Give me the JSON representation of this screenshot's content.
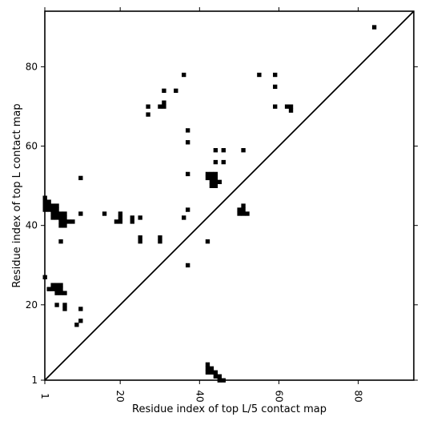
{
  "chart_data": {
    "type": "heatmap",
    "xlabel": "Residue index of top L/5 contact map",
    "ylabel": "Residue index of top L contact map",
    "xlim": [
      1,
      94
    ],
    "ylim": [
      1,
      94
    ],
    "x_ticks": [
      1,
      20,
      40,
      60,
      80
    ],
    "y_ticks": [
      1,
      20,
      40,
      60,
      80
    ],
    "x_tick_labels": [
      "1",
      "20",
      "40",
      "60",
      "80"
    ],
    "y_tick_labels": [
      "1",
      "20",
      "40",
      "60",
      "80"
    ],
    "grid": false,
    "cell_color": "#000000",
    "line_color": "#000000",
    "diagonal": [
      [
        1,
        1
      ],
      [
        94,
        94
      ]
    ],
    "cells": [
      [
        84,
        90
      ],
      [
        36,
        78
      ],
      [
        55,
        78
      ],
      [
        59,
        78
      ],
      [
        59,
        75
      ],
      [
        31,
        74
      ],
      [
        34,
        74
      ],
      [
        31,
        71
      ],
      [
        27,
        70
      ],
      [
        30,
        70
      ],
      [
        31,
        70
      ],
      [
        59,
        70
      ],
      [
        62,
        70
      ],
      [
        63,
        70
      ],
      [
        63,
        69
      ],
      [
        27,
        68
      ],
      [
        37,
        64
      ],
      [
        37,
        61
      ],
      [
        44,
        59
      ],
      [
        46,
        59
      ],
      [
        51,
        59
      ],
      [
        44,
        56
      ],
      [
        46,
        56
      ],
      [
        37,
        53
      ],
      [
        42,
        53
      ],
      [
        43,
        53
      ],
      [
        44,
        53
      ],
      [
        10,
        52
      ],
      [
        42,
        52
      ],
      [
        43,
        52
      ],
      [
        44,
        52
      ],
      [
        43,
        51
      ],
      [
        44,
        51
      ],
      [
        45,
        51
      ],
      [
        43,
        50
      ],
      [
        44,
        50
      ],
      [
        1,
        47
      ],
      [
        1,
        46
      ],
      [
        2,
        46
      ],
      [
        1,
        45
      ],
      [
        2,
        45
      ],
      [
        3,
        45
      ],
      [
        4,
        45
      ],
      [
        51,
        45
      ],
      [
        1,
        44
      ],
      [
        2,
        44
      ],
      [
        3,
        44
      ],
      [
        4,
        44
      ],
      [
        37,
        44
      ],
      [
        50,
        44
      ],
      [
        51,
        44
      ],
      [
        3,
        43
      ],
      [
        4,
        43
      ],
      [
        5,
        43
      ],
      [
        6,
        43
      ],
      [
        10,
        43
      ],
      [
        16,
        43
      ],
      [
        20,
        43
      ],
      [
        50,
        43
      ],
      [
        51,
        43
      ],
      [
        52,
        43
      ],
      [
        3,
        42
      ],
      [
        4,
        42
      ],
      [
        5,
        42
      ],
      [
        6,
        42
      ],
      [
        20,
        42
      ],
      [
        23,
        42
      ],
      [
        25,
        42
      ],
      [
        36,
        42
      ],
      [
        5,
        41
      ],
      [
        6,
        41
      ],
      [
        7,
        41
      ],
      [
        8,
        41
      ],
      [
        19,
        41
      ],
      [
        20,
        41
      ],
      [
        23,
        41
      ],
      [
        5,
        40
      ],
      [
        6,
        40
      ],
      [
        25,
        37
      ],
      [
        30,
        37
      ],
      [
        5,
        36
      ],
      [
        25,
        36
      ],
      [
        30,
        36
      ],
      [
        42,
        36
      ],
      [
        37,
        30
      ],
      [
        1,
        27
      ],
      [
        3,
        25
      ],
      [
        4,
        25
      ],
      [
        5,
        25
      ],
      [
        2,
        24
      ],
      [
        3,
        24
      ],
      [
        4,
        24
      ],
      [
        5,
        24
      ],
      [
        4,
        23
      ],
      [
        5,
        23
      ],
      [
        6,
        23
      ],
      [
        4,
        20
      ],
      [
        6,
        20
      ],
      [
        6,
        19
      ],
      [
        10,
        19
      ],
      [
        10,
        16
      ],
      [
        9,
        15
      ],
      [
        42,
        5
      ],
      [
        42,
        4
      ],
      [
        43,
        4
      ],
      [
        42,
        3
      ],
      [
        43,
        3
      ],
      [
        44,
        3
      ],
      [
        44,
        2
      ],
      [
        45,
        2
      ],
      [
        45,
        1
      ],
      [
        46,
        1
      ]
    ]
  }
}
